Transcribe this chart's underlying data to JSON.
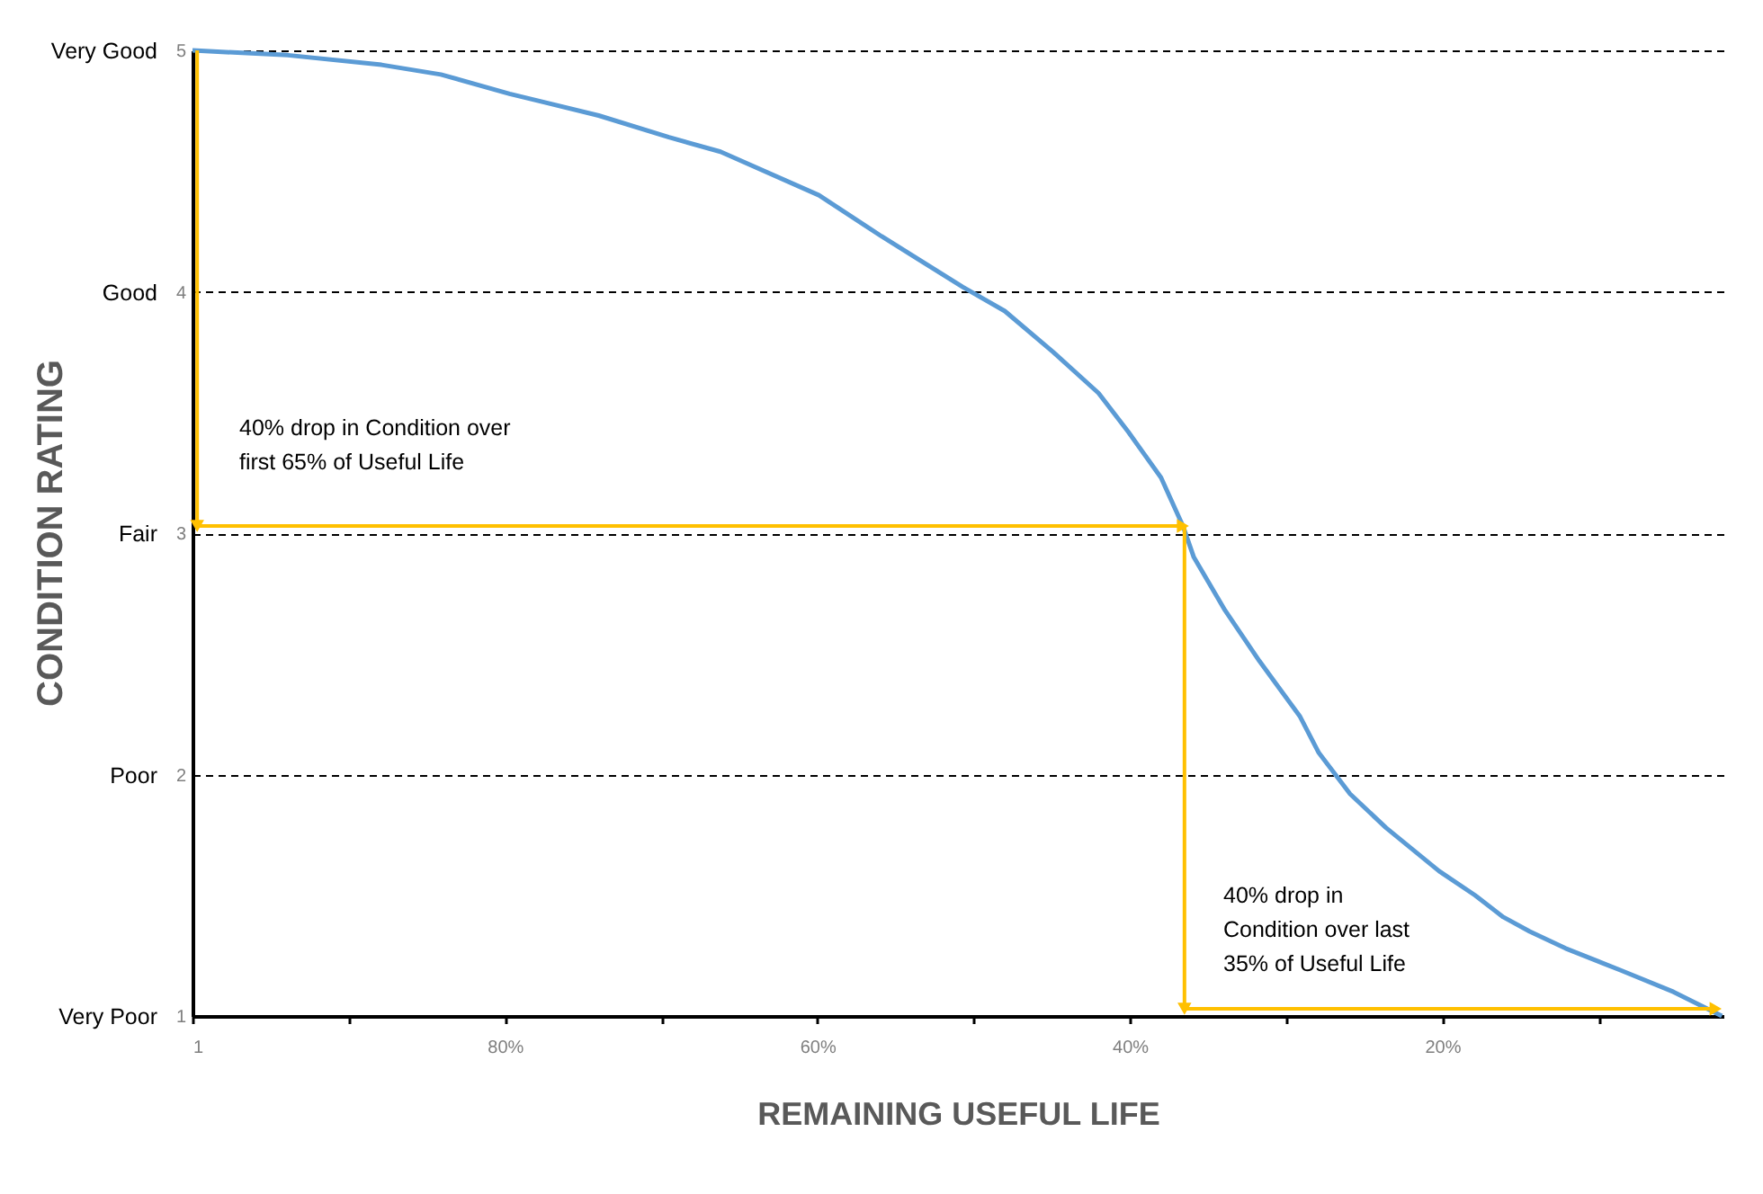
{
  "chart_data": {
    "type": "line",
    "xlabel": "REMAINING USEFUL LIFE",
    "ylabel": "CONDITION RATING",
    "xlim": [
      1,
      0.02
    ],
    "xticks": [
      1,
      {
        "value": 0.9,
        "label": null
      },
      {
        "value": 0.8,
        "label": "80%"
      },
      {
        "value": 0.7,
        "label": null
      },
      {
        "value": 0.6,
        "label": "60%"
      },
      {
        "value": 0.5,
        "label": null
      },
      {
        "value": 0.4,
        "label": "40%"
      },
      {
        "value": 0.3,
        "label": null
      },
      {
        "value": 0.2,
        "label": "20%"
      },
      {
        "value": 0.1,
        "label": null
      }
    ],
    "ylim": [
      1,
      5
    ],
    "yticks": [
      1,
      2,
      3,
      4,
      5
    ],
    "y2_categories": [
      "Very Good",
      "Good",
      "Fair",
      "Poor",
      "Very Poor"
    ],
    "grid": "y",
    "line_style": "solid",
    "series": [
      {
        "color": "#5b9bd5",
        "x": [
          1,
          0.939,
          0.879,
          0.841,
          0.797,
          0.778,
          0.74,
          0.695,
          0.662,
          0.599,
          0.559,
          0.507,
          0.48,
          0.449,
          0.42,
          0.401,
          0.38,
          0.366,
          0.359,
          0.339,
          0.317,
          0.291,
          0.279,
          0.259,
          0.236,
          0.202,
          0.179,
          0.161,
          0.144,
          0.121,
          0.086,
          0.052,
          0.021
        ],
        "values": [
          5,
          4.98,
          4.94,
          4.9,
          4.82,
          4.79,
          4.73,
          4.64,
          4.58,
          4.4,
          4.23,
          4.02,
          3.92,
          3.75,
          3.58,
          3.42,
          3.23,
          3.03,
          2.9,
          2.68,
          2.47,
          2.24,
          2.09,
          1.92,
          1.78,
          1.6,
          1.5,
          1.41,
          1.35,
          1.28,
          1.19,
          1.1,
          1
        ]
      },
      {
        "type": "line",
        "marker": "triangle",
        "color": "#ffc000",
        "x": [
          0.997,
          0.997
        ],
        "values": [
          5,
          3.03
        ]
      },
      {
        "type": "line",
        "marker": "triangle",
        "color": "#ffc000",
        "x": [
          0.997,
          0.366
        ],
        "values": [
          3.03,
          3.03
        ]
      },
      {
        "type": "line",
        "marker": "triangle",
        "color": "#ffc000",
        "x": [
          0.365,
          0.365
        ],
        "values": [
          3.03,
          1.03
        ]
      },
      {
        "type": "line",
        "marker": "triangle",
        "color": "#ffc000",
        "x": [
          0.365,
          0.025
        ],
        "values": [
          1.03,
          1.03
        ]
      }
    ],
    "annotations": [
      "40% drop in Condition over\nfirst 65% of Useful Life",
      "40% drop in\nCondition over last\n35% of Useful Life"
    ]
  }
}
